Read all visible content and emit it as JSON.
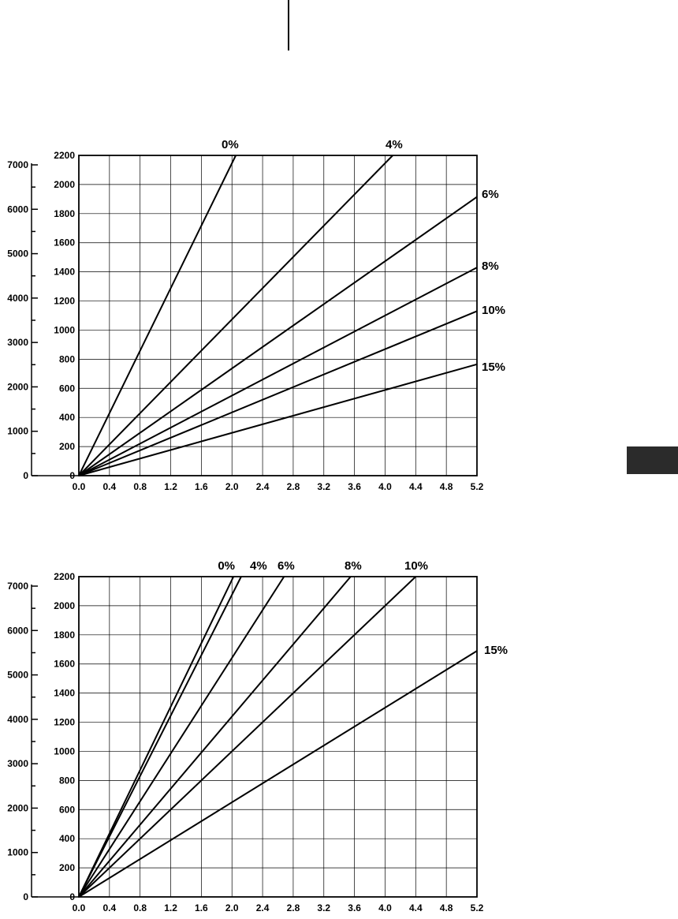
{
  "chart_data": [
    {
      "type": "line",
      "title": "",
      "xlabel": "",
      "ylabel": "",
      "xlim": [
        0,
        5.2
      ],
      "ylim": [
        0,
        2200
      ],
      "secondary_ylim": [
        0,
        7000
      ],
      "x_ticks": [
        "0.0",
        "0.4",
        "0.8",
        "1.2",
        "1.6",
        "2.0",
        "2.4",
        "2.8",
        "3.2",
        "3.6",
        "4.0",
        "4.4",
        "4.8",
        "5.2"
      ],
      "y_ticks": [
        "0",
        "200",
        "400",
        "600",
        "800",
        "1000",
        "1200",
        "1400",
        "1600",
        "1800",
        "2000",
        "2200"
      ],
      "secondary_y_ticks": [
        "0",
        "1000",
        "2000",
        "3000",
        "4000",
        "5000",
        "6000",
        "7000"
      ],
      "grid": true,
      "series": [
        {
          "name": "0%",
          "x": [
            0,
            2.05
          ],
          "values": [
            0,
            2200
          ]
        },
        {
          "name": "4%",
          "x": [
            0,
            4.1
          ],
          "values": [
            0,
            2200
          ]
        },
        {
          "name": "6%",
          "x": [
            0,
            5.2
          ],
          "values": [
            0,
            1915
          ]
        },
        {
          "name": "8%",
          "x": [
            0,
            5.2
          ],
          "values": [
            0,
            1430
          ]
        },
        {
          "name": "10%",
          "x": [
            0,
            5.2
          ],
          "values": [
            0,
            1130
          ]
        },
        {
          "name": "15%",
          "x": [
            0,
            5.2
          ],
          "values": [
            0,
            765
          ]
        }
      ]
    },
    {
      "type": "line",
      "title": "",
      "xlabel": "",
      "ylabel": "",
      "xlim": [
        0,
        5.2
      ],
      "ylim": [
        0,
        2200
      ],
      "secondary_ylim": [
        0,
        7000
      ],
      "x_ticks": [
        "0.0",
        "0.4",
        "0.8",
        "1.2",
        "1.6",
        "2.0",
        "2.4",
        "2.8",
        "3.2",
        "3.6",
        "4.0",
        "4.4",
        "4.8",
        "5.2"
      ],
      "y_ticks": [
        "0",
        "200",
        "400",
        "600",
        "800",
        "1000",
        "1200",
        "1400",
        "1600",
        "1800",
        "2000",
        "2200"
      ],
      "secondary_y_ticks": [
        "0",
        "1000",
        "2000",
        "3000",
        "4000",
        "5000",
        "6000",
        "7000"
      ],
      "grid": true,
      "series": [
        {
          "name": "0%",
          "x": [
            0,
            2.02
          ],
          "values": [
            0,
            2200
          ]
        },
        {
          "name": "4%",
          "x": [
            0,
            2.12
          ],
          "values": [
            0,
            2200
          ]
        },
        {
          "name": "6%",
          "x": [
            0,
            2.68
          ],
          "values": [
            0,
            2200
          ]
        },
        {
          "name": "8%",
          "x": [
            0,
            3.55
          ],
          "values": [
            0,
            2200
          ]
        },
        {
          "name": "10%",
          "x": [
            0,
            4.4
          ],
          "values": [
            0,
            2200
          ]
        },
        {
          "name": "15%",
          "x": [
            0,
            5.2
          ],
          "values": [
            0,
            1690
          ]
        }
      ]
    }
  ]
}
